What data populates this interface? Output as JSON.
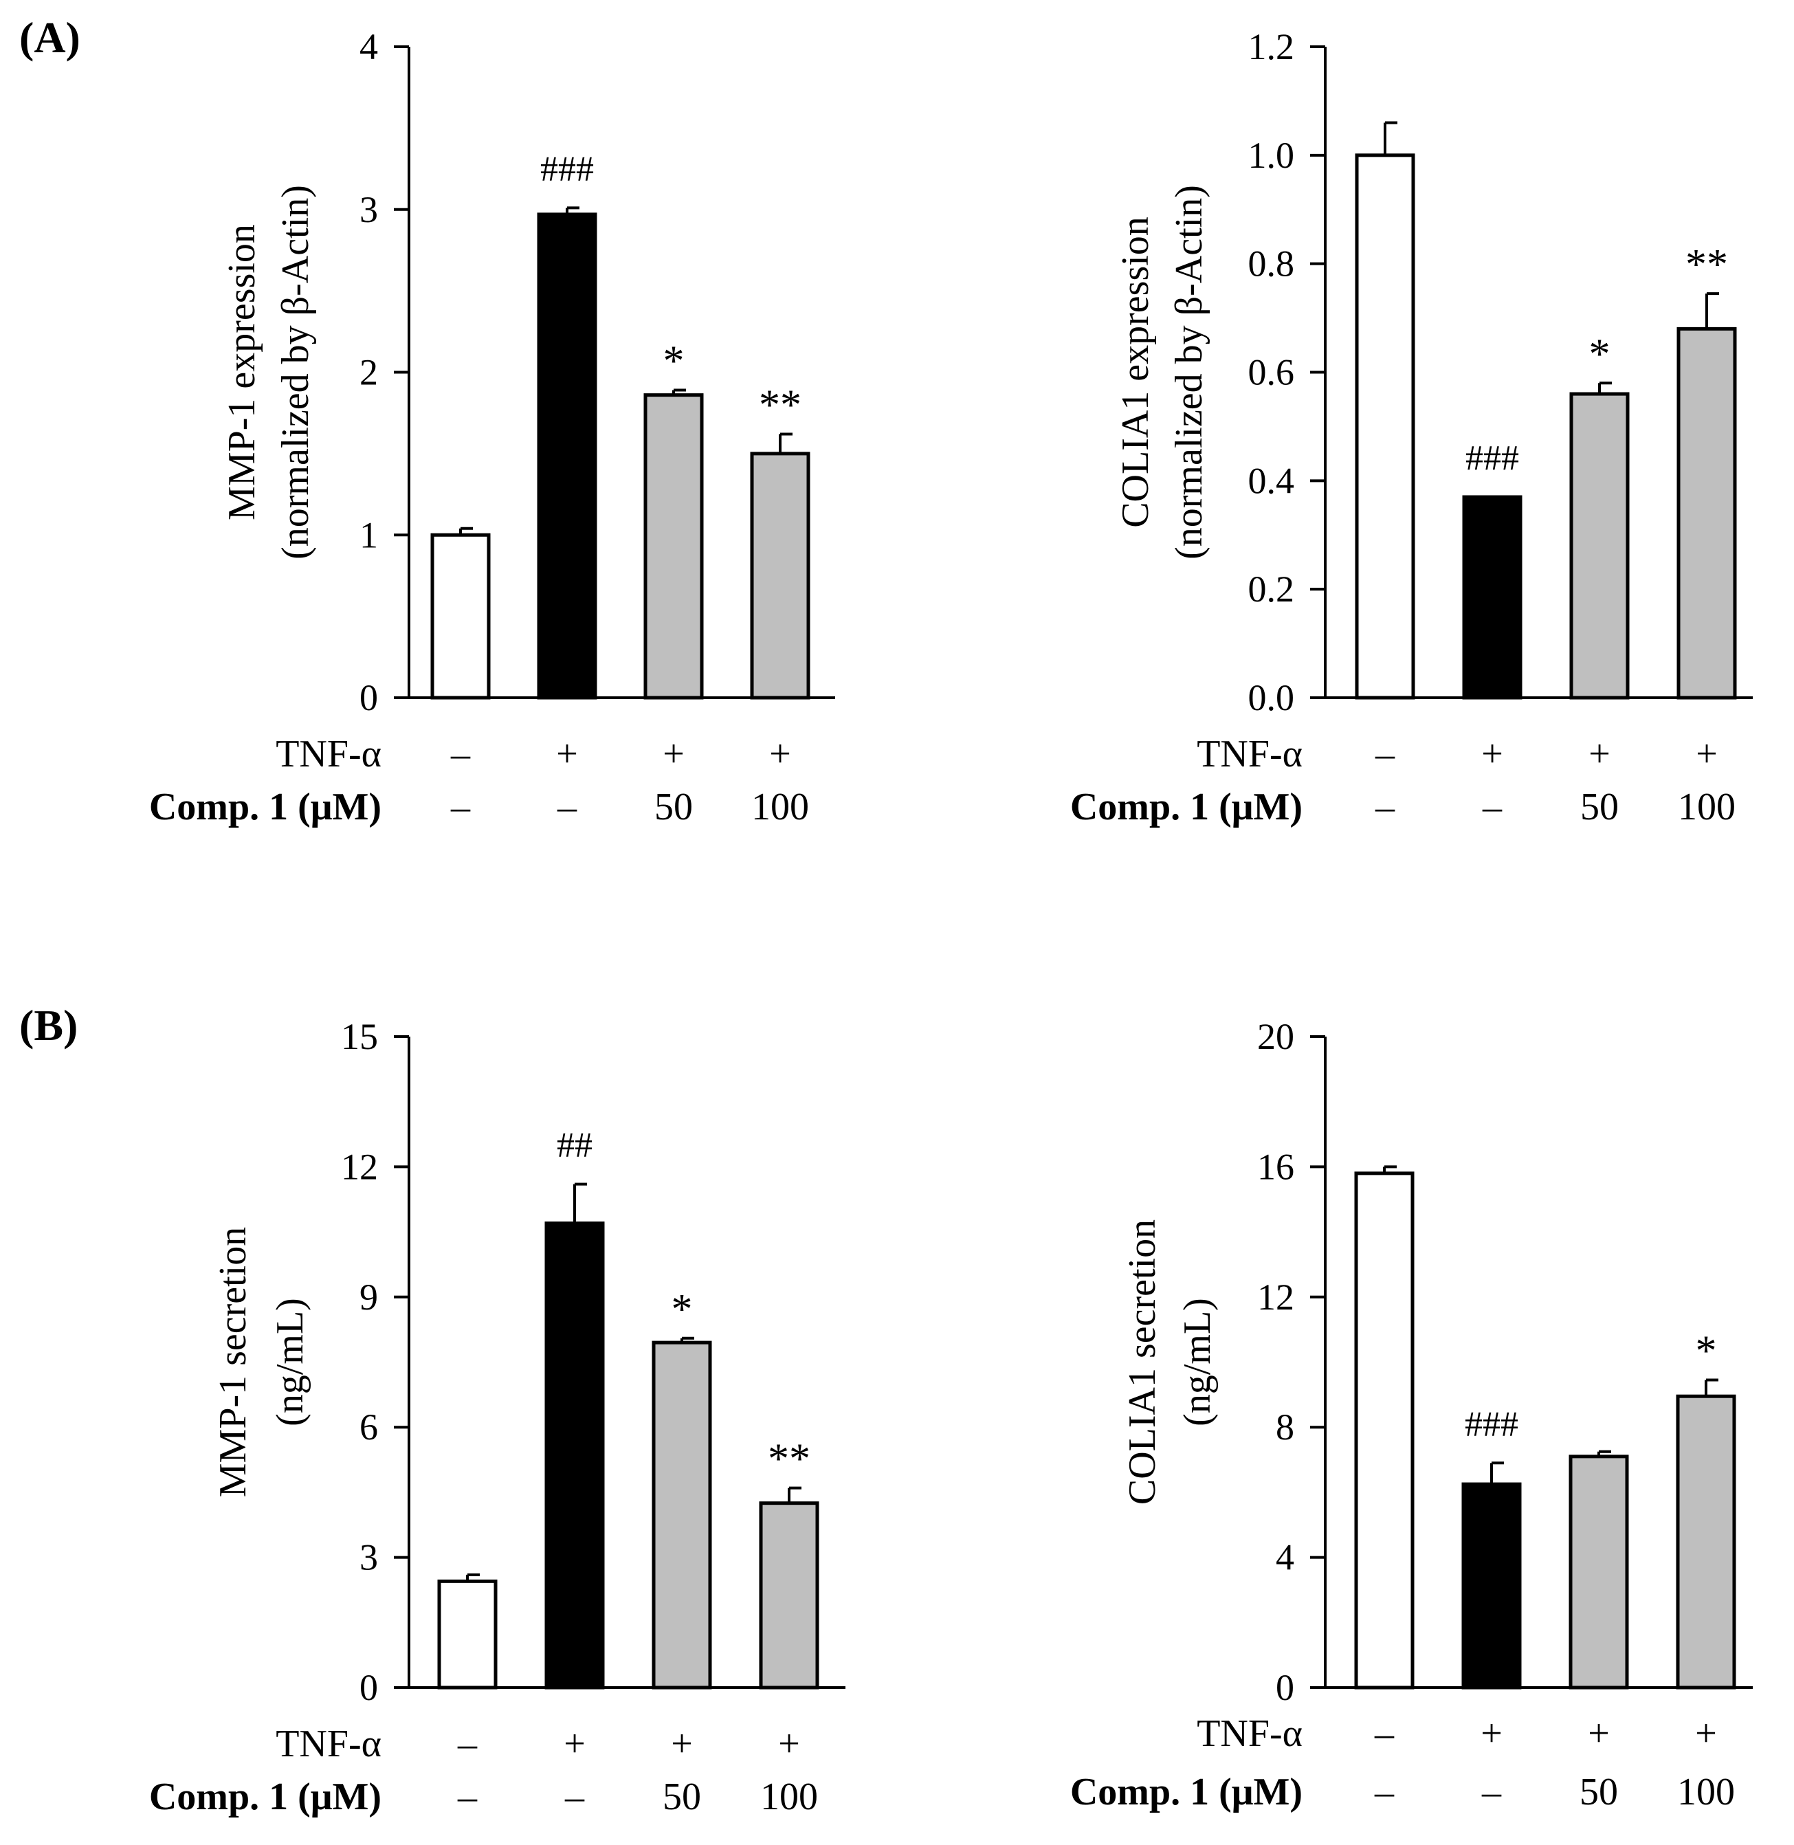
{
  "panels": {
    "A": "(A)",
    "B": "(B)"
  },
  "colors": {
    "control": "#ffffff",
    "tnf": "#000000",
    "comp": "#bfbfbf",
    "stroke": "#000000"
  },
  "chart_data": [
    {
      "id": "A1",
      "type": "bar",
      "title": "",
      "ylabel_line1": "MMP-1 expression",
      "ylabel_line2": "(normalized by β-Actin)",
      "ylim": [
        0,
        4
      ],
      "yticks": [
        "0",
        "1",
        "2",
        "3",
        "4"
      ],
      "categories": [
        "control",
        "TNF-α",
        "TNF-α + Comp. 1 50 μM",
        "TNF-α + Comp. 1 100 μM"
      ],
      "values": [
        1.0,
        2.97,
        1.86,
        1.5
      ],
      "errors": [
        0.04,
        0.04,
        0.03,
        0.12
      ],
      "fills": [
        "control",
        "tnf",
        "comp",
        "comp"
      ],
      "annotations": [
        "",
        "###",
        "*",
        "**"
      ],
      "row_labels": [
        "TNF-α",
        "Comp. 1 (μM)"
      ],
      "row1": [
        "–",
        "+",
        "+",
        "+"
      ],
      "row2": [
        "–",
        "–",
        "50",
        "100"
      ]
    },
    {
      "id": "A2",
      "type": "bar",
      "title": "",
      "ylabel_line1": "COLIA1 expression",
      "ylabel_line2": "(normalized by β-Actin)",
      "ylim": [
        0,
        1.2
      ],
      "yticks": [
        "0.0",
        "0.2",
        "0.4",
        "0.6",
        "0.8",
        "1.0",
        "1.2"
      ],
      "categories": [
        "control",
        "TNF-α",
        "TNF-α + Comp. 1 50 μM",
        "TNF-α + Comp. 1 100 μM"
      ],
      "values": [
        1.0,
        0.37,
        0.56,
        0.68
      ],
      "errors": [
        0.06,
        0.0,
        0.02,
        0.065
      ],
      "fills": [
        "control",
        "tnf",
        "comp",
        "comp"
      ],
      "annotations": [
        "",
        "###",
        "*",
        "**"
      ],
      "row_labels": [
        "TNF-α",
        "Comp. 1 (μM)"
      ],
      "row1": [
        "–",
        "+",
        "+",
        "+"
      ],
      "row2": [
        "–",
        "–",
        "50",
        "100"
      ]
    },
    {
      "id": "B1",
      "type": "bar",
      "title": "",
      "ylabel_line1": "MMP-1 secretion",
      "ylabel_line2": "(ng/mL)",
      "ylim": [
        0,
        15
      ],
      "yticks": [
        "0",
        "3",
        "6",
        "9",
        "12",
        "15"
      ],
      "categories": [
        "control",
        "TNF-α",
        "TNF-α + Comp. 1 50 μM",
        "TNF-α + Comp. 1 100 μM"
      ],
      "values": [
        2.45,
        10.7,
        7.95,
        4.25
      ],
      "errors": [
        0.15,
        0.9,
        0.1,
        0.35
      ],
      "fills": [
        "control",
        "tnf",
        "comp",
        "comp"
      ],
      "annotations": [
        "",
        "##",
        "*",
        "**"
      ],
      "row_labels": [
        "TNF-α",
        "Comp. 1 (μM)"
      ],
      "row1": [
        "–",
        "+",
        "+",
        "+"
      ],
      "row2": [
        "–",
        "–",
        "50",
        "100"
      ]
    },
    {
      "id": "B2",
      "type": "bar",
      "title": "",
      "ylabel_line1": "COLIA1 secretion",
      "ylabel_line2": "(ng/mL)",
      "ylim": [
        0,
        20
      ],
      "yticks": [
        "0",
        "4",
        "8",
        "12",
        "16",
        "20"
      ],
      "categories": [
        "control",
        "TNF-α",
        "TNF-α + Comp. 1 50 μM",
        "TNF-α + Comp. 1 100 μM"
      ],
      "values": [
        15.8,
        6.25,
        7.1,
        8.95
      ],
      "errors": [
        0.2,
        0.65,
        0.15,
        0.5
      ],
      "fills": [
        "control",
        "tnf",
        "comp",
        "comp"
      ],
      "annotations": [
        "",
        "###",
        "",
        "*"
      ],
      "row_labels": [
        "TNF-α",
        "Comp. 1 (μM)"
      ],
      "row1": [
        "–",
        "+",
        "+",
        "+"
      ],
      "row2": [
        "–",
        "–",
        "50",
        "100"
      ]
    }
  ]
}
